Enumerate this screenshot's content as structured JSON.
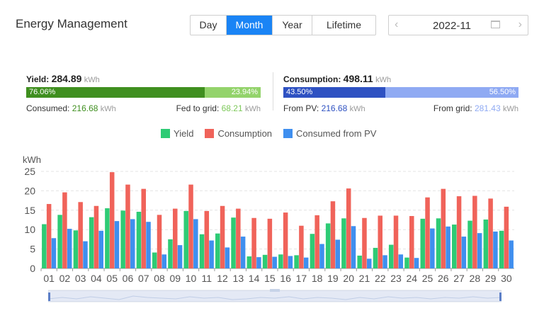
{
  "header": {
    "title": "Energy Management"
  },
  "tabs": {
    "day": "Day",
    "month": "Month",
    "year": "Year",
    "lifetime": "Lifetime",
    "active": "Month"
  },
  "date": {
    "value": "2022-11"
  },
  "yield_summary": {
    "label": "Yield:",
    "value": "284.89",
    "unit": "kWh",
    "left_pct": "76.06%",
    "right_pct": "23.94%",
    "consumed_label": "Consumed:",
    "consumed_value": "216.68",
    "consumed_unit": "kWh",
    "fed_label": "Fed to grid:",
    "fed_value": "68.21",
    "fed_unit": "kWh",
    "colors": {
      "left": "#3f8f1f",
      "right": "#93d36b"
    }
  },
  "consumption_summary": {
    "label": "Consumption:",
    "value": "498.11",
    "unit": "kWh",
    "left_pct": "43.50%",
    "right_pct": "56.50%",
    "pv_label": "From PV:",
    "pv_value": "216.68",
    "pv_unit": "kWh",
    "grid_label": "From grid:",
    "grid_value": "281.43",
    "grid_unit": "kWh",
    "colors": {
      "left": "#2e51c2",
      "right": "#8faaf3"
    }
  },
  "chart_data": {
    "type": "bar",
    "ylabel": "kWh",
    "ylim": [
      0,
      25
    ],
    "yticks": [
      0,
      5,
      10,
      15,
      20,
      25
    ],
    "grid": true,
    "legend_position": "top",
    "categories": [
      "01",
      "02",
      "03",
      "04",
      "05",
      "06",
      "07",
      "08",
      "09",
      "10",
      "11",
      "12",
      "13",
      "14",
      "15",
      "16",
      "17",
      "18",
      "19",
      "20",
      "21",
      "22",
      "23",
      "24",
      "25",
      "26",
      "27",
      "28",
      "29",
      "30"
    ],
    "series": [
      {
        "name": "Yield",
        "color": "#2ecb75",
        "values": [
          11.4,
          13.8,
          9.8,
          13.2,
          15.5,
          14.9,
          14.6,
          4.1,
          7.5,
          14.8,
          8.8,
          9.0,
          13.1,
          3.1,
          3.5,
          3.6,
          3.4,
          8.9,
          11.6,
          12.9,
          3.3,
          5.3,
          6.1,
          2.8,
          12.8,
          12.9,
          11.3,
          12.3,
          12.6,
          9.7
        ]
      },
      {
        "name": "Consumption",
        "color": "#f0635a",
        "values": [
          16.6,
          19.6,
          17.1,
          16.1,
          24.8,
          21.6,
          20.5,
          13.8,
          15.4,
          21.6,
          14.8,
          16.1,
          15.4,
          13.0,
          12.8,
          14.4,
          11.0,
          13.7,
          17.3,
          20.6,
          13.0,
          13.6,
          13.6,
          13.5,
          18.3,
          20.5,
          18.6,
          18.7,
          18.0,
          15.9
        ]
      },
      {
        "name": "Consumed from PV",
        "color": "#3f8fef",
        "values": [
          7.8,
          10.2,
          7.0,
          9.7,
          12.2,
          12.7,
          12.0,
          3.6,
          6.0,
          12.7,
          7.2,
          5.4,
          8.2,
          2.9,
          3.0,
          3.2,
          2.8,
          6.3,
          7.4,
          10.9,
          2.5,
          3.4,
          3.6,
          2.7,
          10.3,
          10.8,
          8.2,
          9.1,
          9.5,
          7.2
        ]
      }
    ]
  }
}
